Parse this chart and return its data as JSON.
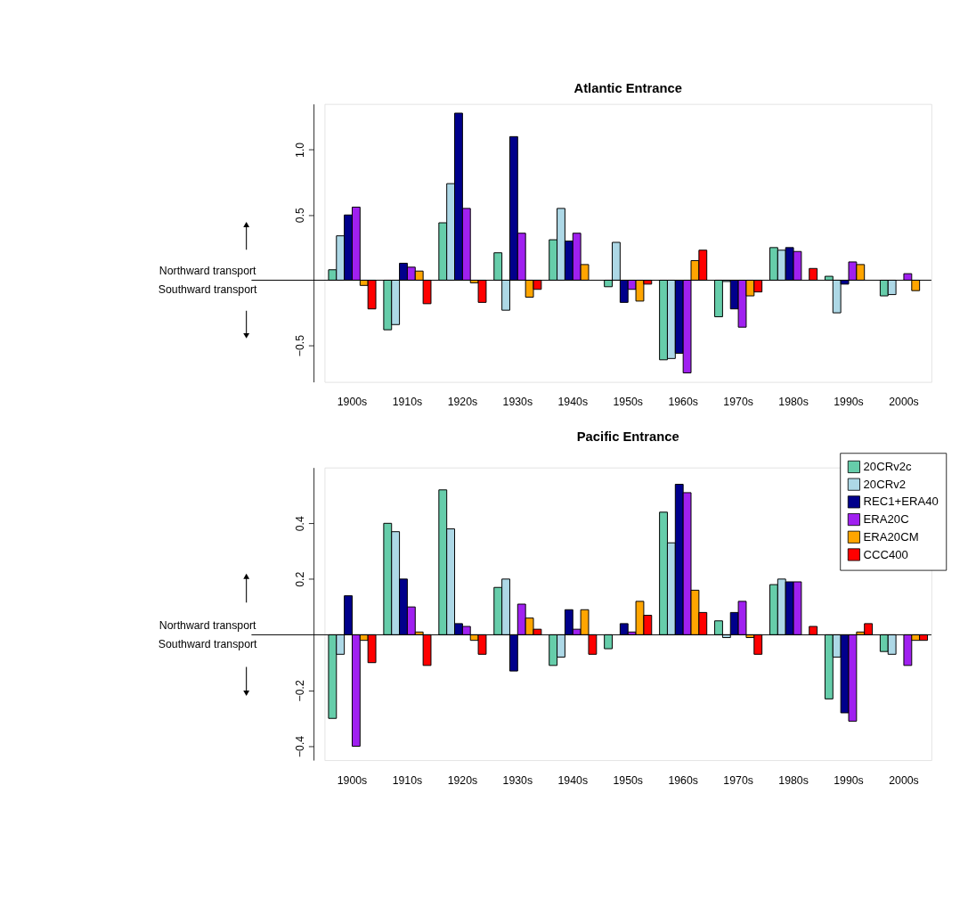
{
  "chart_data": [
    {
      "type": "bar",
      "title": "Atlantic Entrance",
      "categories": [
        "1900s",
        "1910s",
        "1920s",
        "1930s",
        "1940s",
        "1950s",
        "1960s",
        "1970s",
        "1980s",
        "1990s",
        "2000s"
      ],
      "series": [
        {
          "color": "#66cdaa",
          "values": [
            0.08,
            -0.38,
            0.44,
            0.21,
            0.31,
            -0.05,
            -0.61,
            -0.28,
            0.25,
            0.03,
            -0.12
          ]
        },
        {
          "color": "#add8e6",
          "values": [
            0.34,
            -0.34,
            0.74,
            -0.23,
            0.55,
            0.29,
            -0.6,
            -0.01,
            0.23,
            -0.25,
            -0.11
          ]
        },
        {
          "color": "#00008b",
          "values": [
            0.5,
            0.13,
            1.28,
            1.1,
            0.3,
            -0.17,
            -0.56,
            -0.22,
            0.25,
            -0.03,
            null
          ]
        },
        {
          "color": "#a020f0",
          "values": [
            0.56,
            0.1,
            0.55,
            0.36,
            0.36,
            -0.07,
            -0.71,
            -0.36,
            0.22,
            0.14,
            0.05
          ]
        },
        {
          "color": "#ffa500",
          "values": [
            -0.04,
            0.07,
            -0.02,
            -0.13,
            0.12,
            -0.16,
            0.15,
            -0.12,
            null,
            0.12,
            -0.08
          ]
        },
        {
          "color": "#ff0000",
          "values": [
            -0.22,
            -0.18,
            -0.17,
            -0.07,
            null,
            -0.03,
            0.23,
            -0.09,
            0.09,
            null,
            null
          ]
        }
      ],
      "ylim": [
        -0.78,
        1.35
      ],
      "yticks": [
        -0.5,
        0.5,
        {
          "value": 1,
          "label": "1.0"
        }
      ],
      "grid": false,
      "ref_lines": [
        {
          "axis": "y",
          "value": 0
        }
      ],
      "annotations": [
        "Northward transport",
        "Southward transport"
      ]
    },
    {
      "type": "bar",
      "title": "Pacific Entrance",
      "categories": [
        "1900s",
        "1910s",
        "1920s",
        "1930s",
        "1940s",
        "1950s",
        "1960s",
        "1970s",
        "1980s",
        "1990s",
        "2000s"
      ],
      "series": [
        {
          "name": "20CRv2c",
          "color": "#66cdaa",
          "values": [
            -0.3,
            0.4,
            0.52,
            0.17,
            -0.11,
            -0.05,
            0.44,
            0.05,
            0.18,
            -0.23,
            -0.06
          ]
        },
        {
          "name": "20CRv2",
          "color": "#add8e6",
          "values": [
            -0.07,
            0.37,
            0.38,
            0.2,
            -0.08,
            null,
            0.33,
            -0.01,
            0.2,
            -0.08,
            -0.07
          ]
        },
        {
          "name": "REC1+ERA40",
          "color": "#00008b",
          "values": [
            0.14,
            0.2,
            0.04,
            -0.13,
            0.09,
            0.04,
            0.54,
            0.08,
            0.19,
            -0.28,
            null
          ]
        },
        {
          "name": "ERA20C",
          "color": "#a020f0",
          "values": [
            -0.4,
            0.1,
            0.03,
            0.11,
            0.02,
            0.01,
            0.51,
            0.12,
            0.19,
            -0.31,
            -0.11
          ]
        },
        {
          "name": "ERA20CM",
          "color": "#ffa500",
          "values": [
            -0.02,
            0.01,
            -0.02,
            0.06,
            0.09,
            0.12,
            0.16,
            -0.01,
            null,
            0.01,
            -0.02
          ]
        },
        {
          "name": "CCC400",
          "color": "#ff0000",
          "values": [
            -0.1,
            -0.11,
            -0.07,
            0.02,
            -0.07,
            0.07,
            0.08,
            -0.07,
            0.03,
            0.04,
            -0.02
          ]
        }
      ],
      "ylim": [
        -0.45,
        0.6
      ],
      "yticks": [
        -0.4,
        -0.2,
        0.2,
        0.4
      ],
      "grid": false,
      "legend": "top right",
      "ref_lines": [
        {
          "axis": "y",
          "value": 0
        }
      ],
      "annotations": [
        "Northward transport",
        "Southward transport"
      ]
    }
  ]
}
